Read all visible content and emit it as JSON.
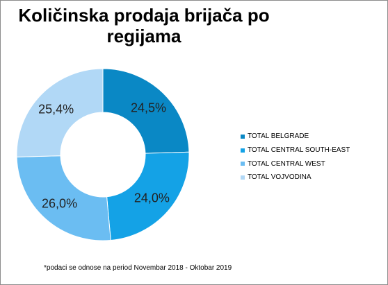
{
  "chart_data": {
    "type": "pie",
    "title": "Količinska prodaja brijača po regijama",
    "categories": [
      "TOTAL BELGRADE",
      "TOTAL CENTRAL SOUTH-EAST",
      "TOTAL CENTRAL WEST",
      "TOTAL VOJVODINA"
    ],
    "values": [
      24.5,
      24.0,
      26.0,
      25.4
    ],
    "labels": [
      "24,5%",
      "24,0%",
      "26,0%",
      "25,4%"
    ],
    "colors": [
      "#0a88c5",
      "#14a2e6",
      "#6bbdf2",
      "#b1d8f6"
    ],
    "donut": true,
    "legend_position": "right",
    "footnote": "*podaci se odnose na period Novembar 2018 - Oktobar 2019"
  }
}
